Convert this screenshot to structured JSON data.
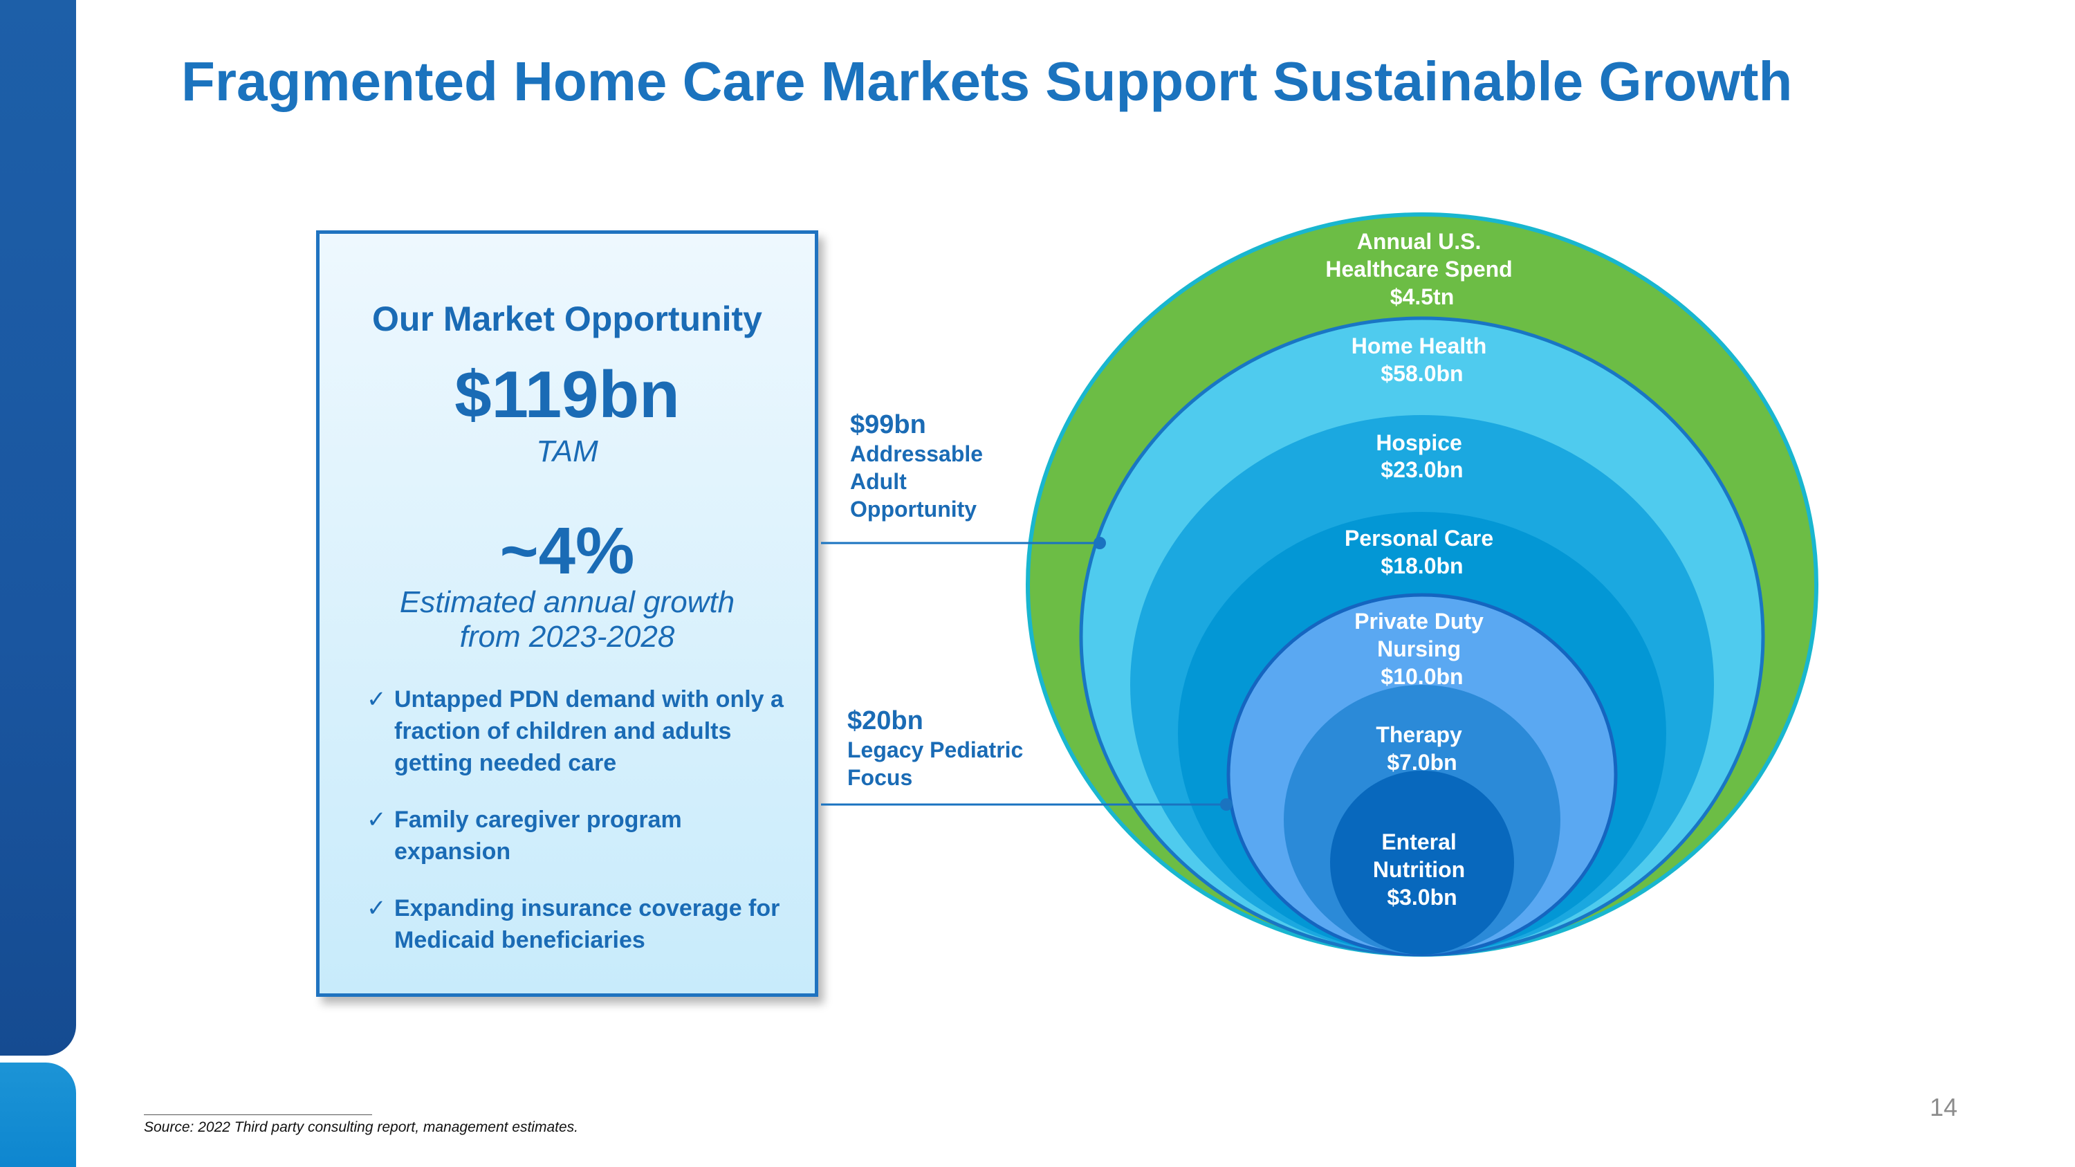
{
  "title": "Fragmented Home Care Markets Support Sustainable Growth",
  "opportunity": {
    "heading": "Our Market Opportunity",
    "tam_value": "$119bn",
    "tam_label": "TAM",
    "growth_value": "~4%",
    "growth_desc": "Estimated annual growth\nfrom 2023-2028",
    "bullets": [
      "Untapped PDN demand with only a fraction of children and adults getting needed care",
      "Family caregiver program expansion",
      "Expanding insurance coverage for Medicaid beneficiaries"
    ]
  },
  "callouts": {
    "adult": {
      "amount": "$99bn",
      "desc": "Addressable\nAdult\nOpportunity"
    },
    "pediatric": {
      "amount": "$20bn",
      "desc": "Legacy Pediatric\nFocus"
    }
  },
  "rings": [
    {
      "label": [
        "Annual U.S.",
        "Healthcare Spend",
        "$4.5tn"
      ],
      "color": "#6cbd45"
    },
    {
      "label": [
        "Home Health",
        "$58.0bn"
      ],
      "color": "#4fcbee"
    },
    {
      "label": [
        "Hospice",
        "$23.0bn"
      ],
      "color": "#1ba8e0"
    },
    {
      "label": [
        "Personal Care",
        "$18.0bn"
      ],
      "color": "#0397d5"
    },
    {
      "label": [
        "Private Duty",
        "Nursing",
        "$10.0bn"
      ],
      "color": "#5aa8f2"
    },
    {
      "label": [
        "Therapy",
        "$7.0bn"
      ],
      "color": "#2b8ad8"
    },
    {
      "label": [
        "Enteral",
        "Nutrition",
        "$3.0bn"
      ],
      "color": "#0868bd"
    }
  ],
  "footnote": "Source: 2022 Third party consulting report, management estimates.",
  "page_number": "14"
}
